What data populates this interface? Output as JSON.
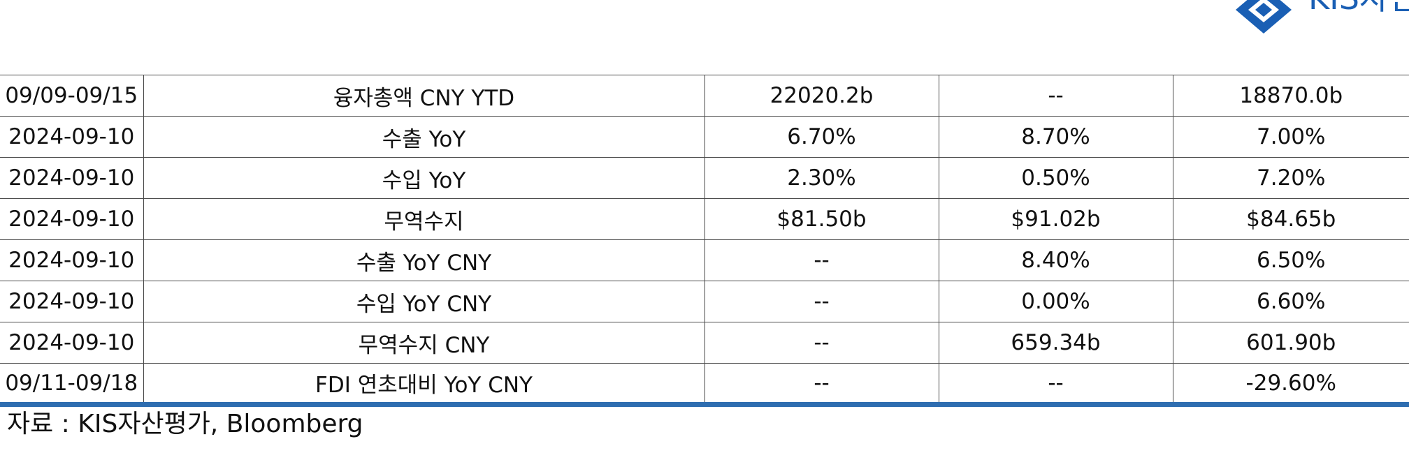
{
  "logo": {
    "text": "KIS자산평가",
    "color": "#1a5fb4"
  },
  "table": {
    "rows": [
      [
        "09/09-09/15",
        "융자총액 CNY YTD",
        "22020.2b",
        "--",
        "18870.0b"
      ],
      [
        "2024-09-10",
        "수출 YoY",
        "6.70%",
        "8.70%",
        "7.00%"
      ],
      [
        "2024-09-10",
        "수입 YoY",
        "2.30%",
        "0.50%",
        "7.20%"
      ],
      [
        "2024-09-10",
        "무역수지",
        "$81.50b",
        "$91.02b",
        "$84.65b"
      ],
      [
        "2024-09-10",
        "수출 YoY CNY",
        "--",
        "8.40%",
        "6.50%"
      ],
      [
        "2024-09-10",
        "수입 YoY CNY",
        "--",
        "0.00%",
        "6.60%"
      ],
      [
        "2024-09-10",
        "무역수지 CNY",
        "--",
        "659.34b",
        "601.90b"
      ],
      [
        "09/11-09/18",
        "FDI 연초대비 YoY CNY",
        "--",
        "--",
        "-29.60%"
      ]
    ],
    "bottom_rule_color": "#2e6db0"
  },
  "source": "자료 : KIS자산평가, Bloomberg"
}
